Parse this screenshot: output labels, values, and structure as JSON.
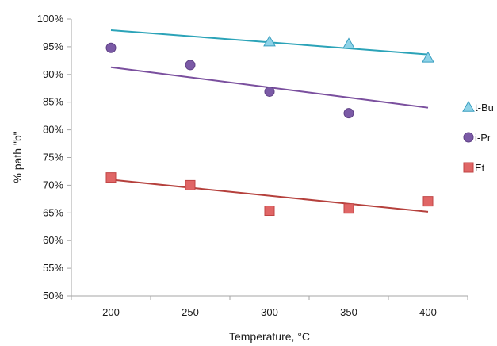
{
  "chart_data": {
    "type": "scatter",
    "title": "",
    "xlabel": "Temperature, °C",
    "ylabel": "% path \"b\"",
    "x_ticks": [
      "200",
      "250",
      "300",
      "350",
      "400"
    ],
    "y_ticks": [
      "50%",
      "55%",
      "60%",
      "65%",
      "70%",
      "75%",
      "80%",
      "85%",
      "90%",
      "95%",
      "100%"
    ],
    "xlim": [
      175,
      425
    ],
    "ylim": [
      50,
      100
    ],
    "grid": false,
    "legend_position": "right",
    "trendlines": true,
    "series": [
      {
        "name": "t-Bu",
        "marker": "triangle",
        "color": "#8fd3e8",
        "stroke": "#3a9fc0",
        "trend_color": "#2ba3b8",
        "x": [
          300,
          350,
          400
        ],
        "y": [
          95.9,
          95.5,
          93.0
        ],
        "trend": {
          "x": [
            200,
            400
          ],
          "y": [
            98.0,
            93.6
          ]
        }
      },
      {
        "name": "i-Pr",
        "marker": "circle",
        "color": "#7b5aa6",
        "stroke": "#5e4085",
        "trend_color": "#7a4f9e",
        "x": [
          200,
          250,
          300,
          350
        ],
        "y": [
          94.8,
          91.7,
          86.9,
          83.0
        ],
        "trend": {
          "x": [
            200,
            400
          ],
          "y": [
            91.3,
            84.0
          ]
        }
      },
      {
        "name": "Et",
        "marker": "square",
        "color": "#e06666",
        "stroke": "#c04444",
        "trend_color": "#b5403c",
        "x": [
          200,
          250,
          300,
          350,
          400
        ],
        "y": [
          71.4,
          70.0,
          65.4,
          65.8,
          67.1
        ],
        "trend": {
          "x": [
            200,
            400
          ],
          "y": [
            71.0,
            65.2
          ]
        }
      }
    ]
  }
}
